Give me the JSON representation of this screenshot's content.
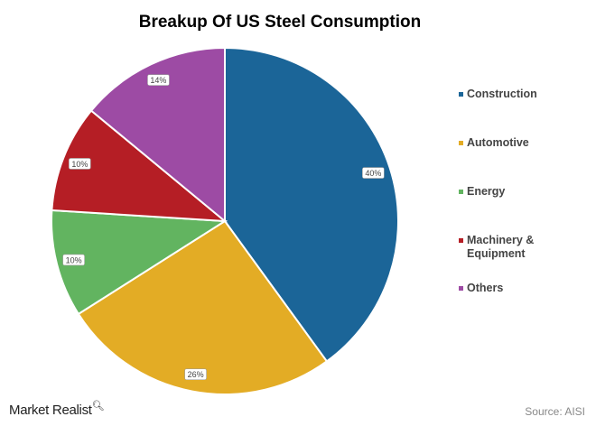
{
  "chart_data": {
    "type": "pie",
    "title": "Breakup Of US Steel Consumption",
    "categories": [
      "Construction",
      "Automotive",
      "Energy",
      "Machinery & Equipment",
      "Others"
    ],
    "values": [
      40,
      26,
      10,
      10,
      14
    ],
    "labels": [
      "40%",
      "26%",
      "10%",
      "10%",
      "14%"
    ],
    "colors": [
      "#1b6598",
      "#e3ac25",
      "#62b460",
      "#b51e25",
      "#9d4ba4"
    ],
    "legend_position": "right"
  },
  "footer": {
    "brand": "Market Realist",
    "source": "Source: AISI"
  }
}
